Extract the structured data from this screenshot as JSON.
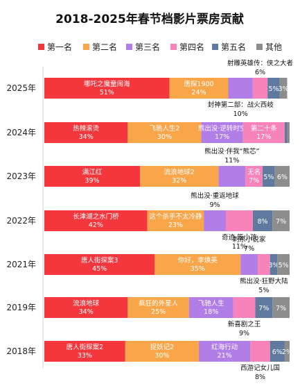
{
  "chart_data": {
    "type": "bar",
    "orientation": "horizontal",
    "stacked": true,
    "title": "2018-2025年春节档影片票房贡献",
    "legend_position": "top",
    "grid": false,
    "xlim": [
      0,
      100
    ],
    "categories": [
      "2025年",
      "2024年",
      "2023年",
      "2022年",
      "2021年",
      "2019年",
      "2018年"
    ],
    "series": [
      {
        "name": "第一名",
        "color": "#f3373c",
        "values": [
          51,
          34,
          39,
          42,
          45,
          34,
          33
        ]
      },
      {
        "name": "第二名",
        "color": "#f9a64b",
        "values": [
          24,
          30,
          32,
          23,
          35,
          25,
          30
        ]
      },
      {
        "name": "第三名",
        "color": "#b17ee8",
        "values": [
          10,
          17,
          11,
          9,
          7,
          18,
          21
        ]
      },
      {
        "name": "第四名",
        "color": "#f783ba",
        "values": [
          6,
          17,
          7,
          11,
          5,
          9,
          8
        ]
      },
      {
        "name": "第五名",
        "color": "#5f7a9e",
        "values": [
          5,
          1,
          5,
          8,
          3,
          7,
          6
        ]
      },
      {
        "name": "其他",
        "color": "#8d8d8d",
        "values": [
          3,
          1,
          6,
          7,
          5,
          7,
          2
        ]
      }
    ],
    "labels": [
      [
        "哪吒之魔童闹海\n51%",
        "唐探1900\n24%",
        "",
        "",
        "5%",
        "3%"
      ],
      [
        "热辣滚烫\n34%",
        "飞驰人生2\n30%",
        "熊出没·逆转时空\n17%",
        "第二十条\n17%",
        "",
        ""
      ],
      [
        "满江红\n39%",
        "流浪地球2\n32%",
        "",
        "无名\n7%",
        "5%",
        "6%"
      ],
      [
        "长津湖之水门桥\n42%",
        "这个杀手不太冷静\n23%",
        "",
        "",
        "8%",
        "7%"
      ],
      [
        "唐人街探案3\n45%",
        "你好，李焕英\n35%",
        "",
        "",
        "3%",
        "5%"
      ],
      [
        "流浪地球\n34%",
        "疯狂的外星人\n25%",
        "飞驰人生\n18%",
        "",
        "7%",
        "7%"
      ],
      [
        "唐人街探案2\n33%",
        "捉妖记2\n30%",
        "红海行动\n21%",
        "",
        "6%",
        "2%"
      ]
    ],
    "callouts": [
      {
        "text": "射雕英雄传：侠之大者\n6%",
        "row": 0,
        "seg": 3,
        "side": "above"
      },
      {
        "text": "封神第二部：战火西岐\n10%",
        "row": 0,
        "seg": 2,
        "side": "below"
      },
      {
        "text": "熊出没·伴我“熊芯”\n11%",
        "row": 2,
        "seg": 2,
        "side": "above"
      },
      {
        "text": "熊出没·重返地球\n9%",
        "row": 3,
        "seg": 2,
        "side": "above"
      },
      {
        "text": "奇迹·笨小孩\n11%",
        "row": 3,
        "seg": 3,
        "side": "below"
      },
      {
        "text": "刺杀小说家\n7%",
        "row": 4,
        "seg": 2,
        "side": "above"
      },
      {
        "text": "熊出没·狂野大陆\n5%",
        "row": 4,
        "seg": 3,
        "side": "below"
      },
      {
        "text": "新喜剧之王\n9%",
        "row": 5,
        "seg": 3,
        "side": "below"
      },
      {
        "text": "西游记女儿国\n8%",
        "row": 6,
        "seg": 3,
        "side": "below"
      }
    ]
  }
}
